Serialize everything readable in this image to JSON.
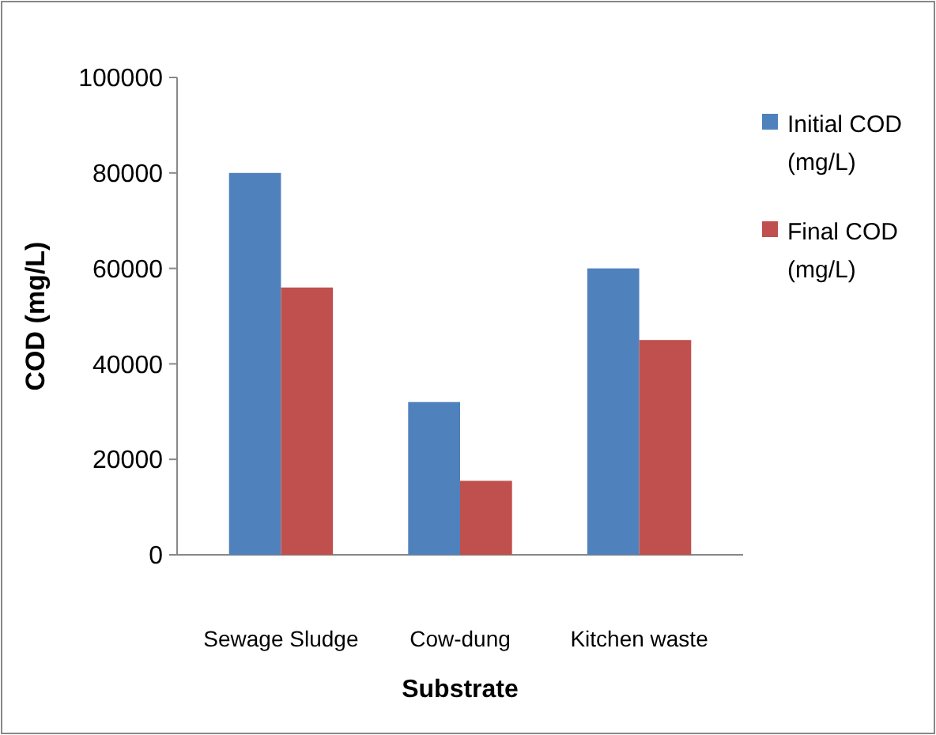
{
  "chart_data": {
    "type": "bar",
    "xlabel": "Substrate",
    "ylabel": "COD (mg/L)",
    "categories": [
      "Sewage Sludge",
      "Cow-dung",
      "Kitchen waste"
    ],
    "series": [
      {
        "name": "Initial COD (mg/L)",
        "color": "#4f81bd",
        "values": [
          80000,
          32000,
          60000
        ]
      },
      {
        "name": "Final COD (mg/L)",
        "color": "#c0504d",
        "values": [
          56000,
          15500,
          45000
        ]
      }
    ],
    "ylim": [
      0,
      100000
    ],
    "yticks": [
      0,
      20000,
      40000,
      60000,
      80000,
      100000
    ],
    "grid": false,
    "legend": "right"
  }
}
